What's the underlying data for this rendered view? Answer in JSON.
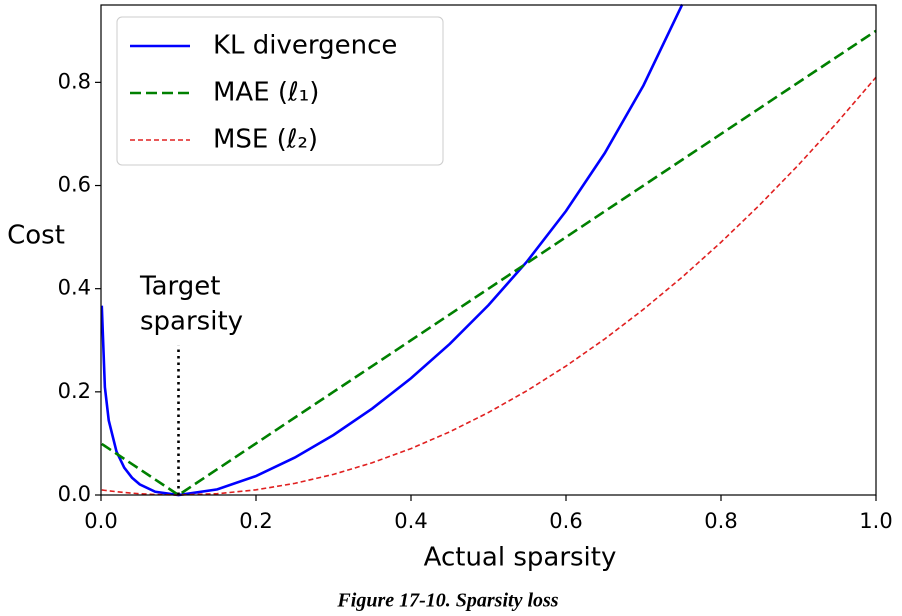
{
  "chart_data": {
    "type": "line",
    "xlabel": "Actual sparsity",
    "ylabel": "Cost",
    "caption": "Figure 17-10. Sparsity loss",
    "annotation_lines": [
      "Target",
      "sparsity"
    ],
    "target_line": {
      "x": 0.1,
      "y": [
        0,
        0.29
      ],
      "color": "#000000"
    },
    "x": [
      0.001,
      0.005,
      0.01,
      0.02,
      0.03,
      0.04,
      0.05,
      0.07,
      0.1,
      0.15,
      0.2,
      0.25,
      0.3,
      0.35,
      0.4,
      0.45,
      0.5,
      0.55,
      0.6,
      0.65,
      0.7,
      0.75,
      0.8,
      0.85,
      0.9,
      0.95,
      1.0
    ],
    "series": [
      {
        "name": "KL divergence",
        "color": "#0000ff",
        "linestyle": "solid",
        "values": [
          0.367,
          0.209,
          0.1445,
          0.0843,
          0.053,
          0.0335,
          0.0206,
          0.0062,
          0,
          0.0109,
          0.0367,
          0.0725,
          0.1163,
          0.1676,
          0.2263,
          0.2928,
          0.3681,
          0.4533,
          0.5506,
          0.6628,
          0.7942,
          0.951,
          null,
          null,
          null,
          null,
          null
        ]
      },
      {
        "name": "MAE (ℓ₁)",
        "color": "#008000",
        "linestyle": "dashed",
        "values": [
          0.099,
          0.095,
          0.09,
          0.08,
          0.07,
          0.06,
          0.05,
          0.03,
          0,
          0.05,
          0.1,
          0.15,
          0.2,
          0.25,
          0.3,
          0.35,
          0.4,
          0.45,
          0.5,
          0.55,
          0.6,
          0.65,
          0.7,
          0.75,
          0.8,
          0.85,
          0.9
        ]
      },
      {
        "name": "MSE (ℓ₂)",
        "color": "#e02020",
        "linestyle": "dotted-dash",
        "values": [
          0.0098,
          0.009,
          0.0081,
          0.0064,
          0.0049,
          0.0036,
          0.0025,
          0.0009,
          0,
          0.0025,
          0.01,
          0.0225,
          0.04,
          0.0625,
          0.09,
          0.1225,
          0.16,
          0.2025,
          0.25,
          0.3025,
          0.36,
          0.4225,
          0.49,
          0.5625,
          0.64,
          0.7225,
          0.81
        ]
      }
    ],
    "xlim": [
      0,
      1
    ],
    "ylim": [
      0,
      0.95
    ],
    "xticks": [
      {
        "value": 0,
        "label": "0.0"
      },
      {
        "value": 0.2,
        "label": "0.2"
      },
      {
        "value": 0.4,
        "label": "0.4"
      },
      {
        "value": 0.6,
        "label": "0.6"
      },
      {
        "value": 0.8,
        "label": "0.8"
      },
      {
        "value": 1,
        "label": "1.0"
      }
    ],
    "yticks": [
      {
        "value": 0,
        "label": "0.0"
      },
      {
        "value": 0.2,
        "label": "0.2"
      },
      {
        "value": 0.4,
        "label": "0.4"
      },
      {
        "value": 0.6,
        "label": "0.6"
      },
      {
        "value": 0.8,
        "label": "0.8"
      }
    ],
    "grid": false,
    "legend": "upper left"
  }
}
